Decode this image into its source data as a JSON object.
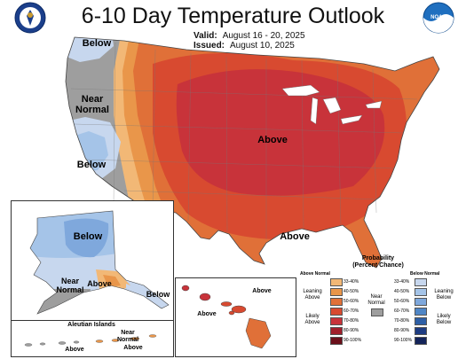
{
  "header": {
    "title": "6-10 Day Temperature Outlook",
    "valid_label": "Valid:",
    "valid_value": "August 16 - 20, 2025",
    "issued_label": "Issued:",
    "issued_value": "August 10, 2025"
  },
  "logos": {
    "left": "NWS-CPC seal",
    "right": "NOAA"
  },
  "map_labels": {
    "conus_above": "Above",
    "conus_above_south": "Above",
    "conus_below_nw": "Below",
    "conus_near_normal": "Near\nNormal",
    "conus_below_west": "Below",
    "alaska_below": "Below",
    "alaska_near_normal": "Near\nNormal",
    "alaska_above": "Above",
    "alaska_below_se": "Below",
    "hawaii_above_1": "Above",
    "hawaii_above_2": "Above",
    "aleutian_title": "Aleutian Islands",
    "aleutian_near_normal": "Near\nNormal",
    "aleutian_above_1": "Above",
    "aleutian_above_2": "Above"
  },
  "legend": {
    "title": "Probability\n(Percent Chance)",
    "above_header": "Above Normal",
    "below_header": "Below Normal",
    "near_normal": "Near\nNormal",
    "leaning_above": "Leaning\nAbove",
    "likely_above": "Likely\nAbove",
    "leaning_below": "Leaning\nBelow",
    "likely_below": "Likely\nBelow",
    "above_categories": [
      {
        "range": "33-40%",
        "color": "#f2b876"
      },
      {
        "range": "40-50%",
        "color": "#e9964a"
      },
      {
        "range": "50-60%",
        "color": "#e07038"
      },
      {
        "range": "60-70%",
        "color": "#d84a30"
      },
      {
        "range": "70-80%",
        "color": "#c8333a"
      },
      {
        "range": "80-90%",
        "color": "#a01e2a"
      },
      {
        "range": "90-100%",
        "color": "#6b0f1a"
      }
    ],
    "below_categories": [
      {
        "range": "33-40%",
        "color": "#c7d7ee"
      },
      {
        "range": "40-50%",
        "color": "#a5c4e8"
      },
      {
        "range": "50-60%",
        "color": "#7fa8dc"
      },
      {
        "range": "60-70%",
        "color": "#4f86c6"
      },
      {
        "range": "70-80%",
        "color": "#2e5fa6"
      },
      {
        "range": "80-90%",
        "color": "#1e3c82"
      },
      {
        "range": "90-100%",
        "color": "#14245a"
      }
    ],
    "near_color": "#9e9e9e"
  }
}
